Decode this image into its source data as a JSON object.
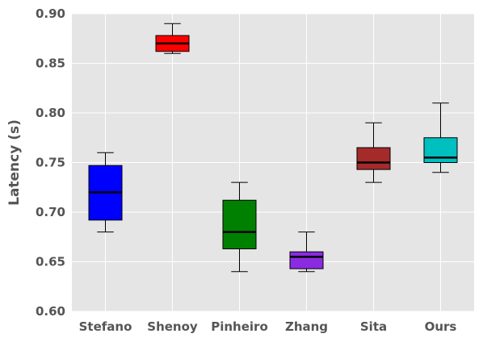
{
  "chart_data": {
    "type": "box",
    "ylabel": "Latency (s)",
    "xlabel": "",
    "title": "",
    "ylim": [
      0.6,
      0.9
    ],
    "yticks": [
      0.6,
      0.65,
      0.7,
      0.75,
      0.8,
      0.85,
      0.9
    ],
    "ytick_labels": [
      "0.60",
      "0.65",
      "0.70",
      "0.75",
      "0.80",
      "0.85",
      "0.90"
    ],
    "grid": true,
    "categories": [
      "Stefano",
      "Shenoy",
      "Pinheiro",
      "Zhang",
      "Sita",
      "Ours"
    ],
    "boxes": [
      {
        "category": "Stefano",
        "whisker_low": 0.68,
        "q1": 0.692,
        "median": 0.72,
        "q3": 0.747,
        "whisker_high": 0.76,
        "color": "#0000ff"
      },
      {
        "category": "Shenoy",
        "whisker_low": 0.86,
        "q1": 0.862,
        "median": 0.87,
        "q3": 0.878,
        "whisker_high": 0.89,
        "color": "#ff0000"
      },
      {
        "category": "Pinheiro",
        "whisker_low": 0.64,
        "q1": 0.663,
        "median": 0.68,
        "q3": 0.712,
        "whisker_high": 0.73,
        "color": "#008000"
      },
      {
        "category": "Zhang",
        "whisker_low": 0.64,
        "q1": 0.643,
        "median": 0.655,
        "q3": 0.66,
        "whisker_high": 0.68,
        "color": "#8a2be2"
      },
      {
        "category": "Sita",
        "whisker_low": 0.73,
        "q1": 0.743,
        "median": 0.75,
        "q3": 0.765,
        "whisker_high": 0.79,
        "color": "#a52a2a"
      },
      {
        "category": "Ours",
        "whisker_low": 0.74,
        "q1": 0.75,
        "median": 0.755,
        "q3": 0.775,
        "whisker_high": 0.81,
        "color": "#00bfbf"
      }
    ]
  }
}
